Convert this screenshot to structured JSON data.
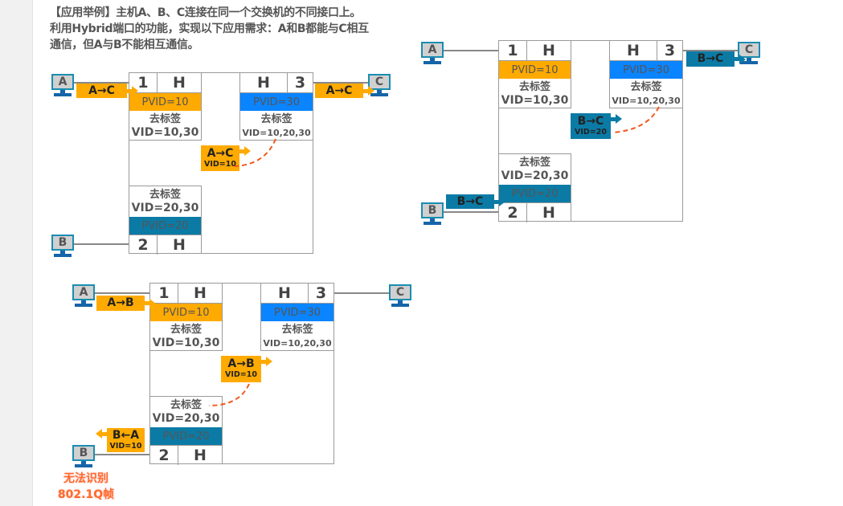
{
  "title": "【应用举例】主机A、B、C连接在同一个交换机的不同接口上。利用Hybrid端口的功能，实现以下应用需求：A和B都能与C相互通信，但A与B不能相互通信。",
  "colors": {
    "pvid10": "#FFAA00",
    "pvid30": "#0A84FF",
    "pvid20": "#0B7BA6",
    "tag_orange": "#FFAA00",
    "tag_teal": "#0B7BA6",
    "dashed": "#F05A1E"
  },
  "hosts": {
    "a": "A",
    "b": "B",
    "c": "C"
  },
  "ports": {
    "p1": {
      "num": "1",
      "mode": "H",
      "pvid": "PVID=10",
      "untag": "去标签",
      "vid": "VID=10,30"
    },
    "p2": {
      "num": "2",
      "mode": "H",
      "pvid": "PVID=20",
      "untag": "去标签",
      "vid": "VID=20,30"
    },
    "p3": {
      "num": "3",
      "mode": "H",
      "pvid": "PVID=30",
      "untag": "去标签",
      "vid": "VID=10,20,30"
    }
  },
  "diagrams": [
    {
      "tags": {
        "in": "A→C",
        "inner": "A→C",
        "inner_vid": "VID=10",
        "out": "A→C"
      }
    },
    {
      "tags": {
        "in": "B→C",
        "inner": "B→C",
        "inner_vid": "VID=20",
        "out": "B→C"
      }
    },
    {
      "tags": {
        "in": "A→B",
        "inner": "A→B",
        "inner_vid": "VID=10",
        "out": "B←A",
        "out_vid": "VID=10"
      },
      "note": [
        "无法识别",
        "802.1Q帧"
      ]
    }
  ]
}
